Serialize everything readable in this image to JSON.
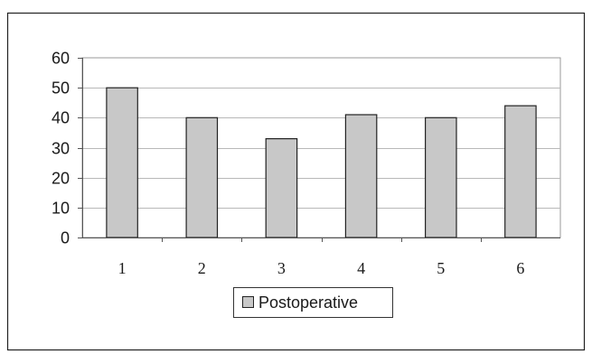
{
  "chart_data": {
    "type": "bar",
    "categories": [
      "1",
      "2",
      "3",
      "4",
      "5",
      "6"
    ],
    "series": [
      {
        "name": "Postoperative",
        "values": [
          50,
          40,
          33,
          41,
          40,
          44
        ]
      }
    ],
    "title": "",
    "xlabel": "",
    "ylabel": "",
    "ylim": [
      0,
      60
    ],
    "yticks": [
      "0",
      "10",
      "20",
      "30",
      "40",
      "50",
      "60"
    ],
    "grid": true,
    "legend_position": "bottom-center",
    "colors": {
      "bar_fill": "#c8c8c8",
      "bar_stroke": "#222222",
      "grid": "#b8b8b8",
      "axis": "#555555",
      "frame": "#222222"
    }
  }
}
